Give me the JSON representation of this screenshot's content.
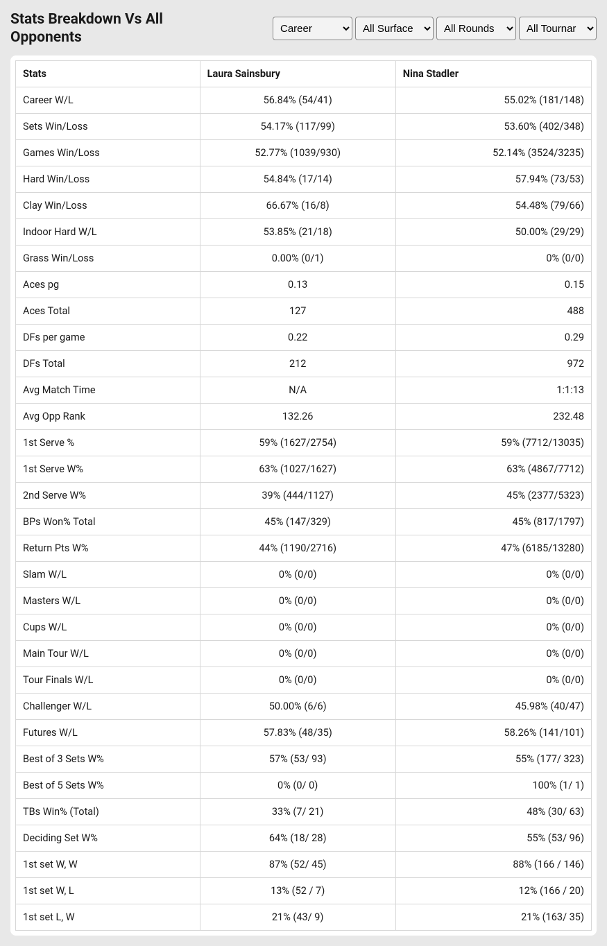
{
  "title": "Stats Breakdown Vs All Opponents",
  "filters": {
    "period": {
      "selected": "Career",
      "options": [
        "Career"
      ]
    },
    "surface": {
      "selected": "All Surface",
      "options": [
        "All Surface"
      ]
    },
    "round": {
      "selected": "All Rounds",
      "options": [
        "All Rounds"
      ]
    },
    "tournament": {
      "selected": "All Tournar",
      "options": [
        "All Tournar"
      ]
    }
  },
  "columns": {
    "stats": "Stats",
    "player1": "Laura Sainsbury",
    "player2": "Nina Stadler"
  },
  "rows": [
    {
      "stat": "Career W/L",
      "p1": "56.84% (54/41)",
      "p2": "55.02% (181/148)"
    },
    {
      "stat": "Sets Win/Loss",
      "p1": "54.17% (117/99)",
      "p2": "53.60% (402/348)"
    },
    {
      "stat": "Games Win/Loss",
      "p1": "52.77% (1039/930)",
      "p2": "52.14% (3524/3235)"
    },
    {
      "stat": "Hard Win/Loss",
      "p1": "54.84% (17/14)",
      "p2": "57.94% (73/53)"
    },
    {
      "stat": "Clay Win/Loss",
      "p1": "66.67% (16/8)",
      "p2": "54.48% (79/66)"
    },
    {
      "stat": "Indoor Hard W/L",
      "p1": "53.85% (21/18)",
      "p2": "50.00% (29/29)"
    },
    {
      "stat": "Grass Win/Loss",
      "p1": "0.00% (0/1)",
      "p2": "0% (0/0)"
    },
    {
      "stat": "Aces pg",
      "p1": "0.13",
      "p2": "0.15"
    },
    {
      "stat": "Aces Total",
      "p1": "127",
      "p2": "488"
    },
    {
      "stat": "DFs per game",
      "p1": "0.22",
      "p2": "0.29"
    },
    {
      "stat": "DFs Total",
      "p1": "212",
      "p2": "972"
    },
    {
      "stat": "Avg Match Time",
      "p1": "N/A",
      "p2": "1:1:13"
    },
    {
      "stat": "Avg Opp Rank",
      "p1": "132.26",
      "p2": "232.48"
    },
    {
      "stat": "1st Serve %",
      "p1": "59% (1627/2754)",
      "p2": "59% (7712/13035)"
    },
    {
      "stat": "1st Serve W%",
      "p1": "63% (1027/1627)",
      "p2": "63% (4867/7712)"
    },
    {
      "stat": "2nd Serve W%",
      "p1": "39% (444/1127)",
      "p2": "45% (2377/5323)"
    },
    {
      "stat": "BPs Won% Total",
      "p1": "45% (147/329)",
      "p2": "45% (817/1797)"
    },
    {
      "stat": "Return Pts W%",
      "p1": "44% (1190/2716)",
      "p2": "47% (6185/13280)"
    },
    {
      "stat": "Slam W/L",
      "p1": "0% (0/0)",
      "p2": "0% (0/0)"
    },
    {
      "stat": "Masters W/L",
      "p1": "0% (0/0)",
      "p2": "0% (0/0)"
    },
    {
      "stat": "Cups W/L",
      "p1": "0% (0/0)",
      "p2": "0% (0/0)"
    },
    {
      "stat": "Main Tour W/L",
      "p1": "0% (0/0)",
      "p2": "0% (0/0)"
    },
    {
      "stat": "Tour Finals W/L",
      "p1": "0% (0/0)",
      "p2": "0% (0/0)"
    },
    {
      "stat": "Challenger W/L",
      "p1": "50.00% (6/6)",
      "p2": "45.98% (40/47)"
    },
    {
      "stat": "Futures W/L",
      "p1": "57.83% (48/35)",
      "p2": "58.26% (141/101)"
    },
    {
      "stat": "Best of 3 Sets W%",
      "p1": "57% (53/ 93)",
      "p2": "55% (177/ 323)"
    },
    {
      "stat": "Best of 5 Sets W%",
      "p1": "0% (0/ 0)",
      "p2": "100% (1/ 1)"
    },
    {
      "stat": "TBs Win% (Total)",
      "p1": "33% (7/ 21)",
      "p2": "48% (30/ 63)"
    },
    {
      "stat": "Deciding Set W%",
      "p1": "64% (18/ 28)",
      "p2": "55% (53/ 96)"
    },
    {
      "stat": "1st set W, W",
      "p1": "87% (52/ 45)",
      "p2": "88% (166 / 146)"
    },
    {
      "stat": "1st set W, L",
      "p1": "13% (52 / 7)",
      "p2": "12% (166 / 20)"
    },
    {
      "stat": "1st set L, W",
      "p1": "21% (43/ 9)",
      "p2": "21% (163/ 35)"
    }
  ]
}
